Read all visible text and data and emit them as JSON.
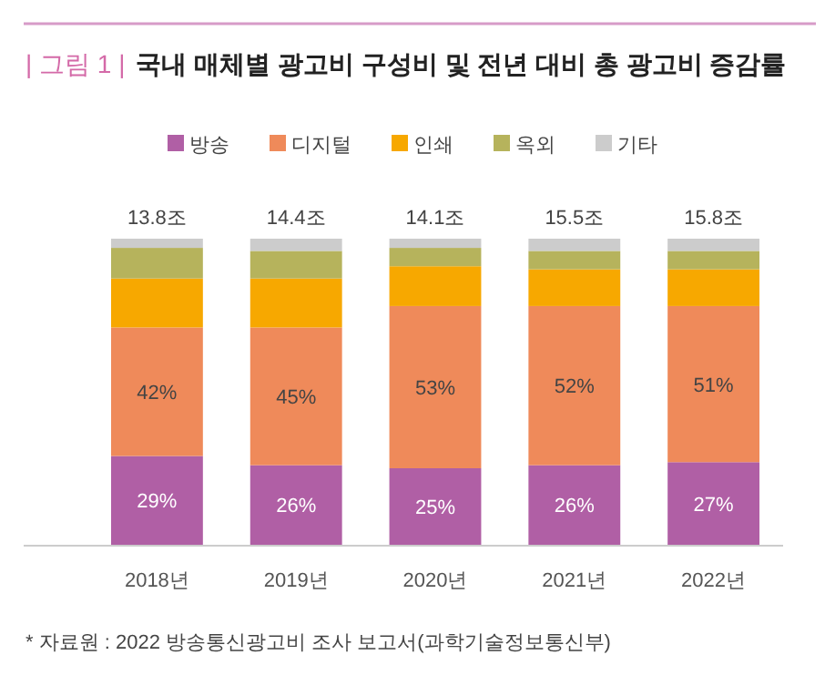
{
  "chart_data": {
    "type": "bar",
    "stacked": true,
    "title": "국내 매체별 광고비 구성비 및 전년 대비 총 광고비 증감률",
    "annotations": [
      "| 그림 1 |",
      "* 자료원 : 2022 방송통신광고비 조사 보고서(과학기술정보통신부)",
      {
        "text": "13.8조",
        "x": "2018년",
        "y": 100
      },
      {
        "text": "14.4조",
        "x": "2019년",
        "y": 100
      },
      {
        "text": "14.1조",
        "x": "2020년",
        "y": 100
      },
      {
        "text": "15.5조",
        "x": "2021년",
        "y": 100
      },
      {
        "text": "15.8조",
        "x": "2022년",
        "y": 100
      }
    ],
    "categories": [
      "2018년",
      "2019년",
      "2020년",
      "2021년",
      "2022년"
    ],
    "series": [
      {
        "name": "방송",
        "color": "#b05fa5",
        "values": [
          29,
          26,
          25,
          26,
          27
        ],
        "value_labels": [
          "29%",
          "26%",
          "25%",
          "26%",
          "27%"
        ]
      },
      {
        "name": "디지털",
        "color": "#ef8a5a",
        "values": [
          42,
          45,
          53,
          52,
          51
        ],
        "value_labels": [
          "42%",
          "45%",
          "53%",
          "52%",
          "51%"
        ]
      },
      {
        "name": "인쇄",
        "color": "#f7a800",
        "values": [
          16,
          16,
          13,
          12,
          12
        ]
      },
      {
        "name": "옥외",
        "color": "#b6b35c",
        "values": [
          10,
          9,
          6,
          6,
          6
        ]
      },
      {
        "name": "기타",
        "color": "#cccccc",
        "values": [
          3,
          4,
          3,
          4,
          4
        ]
      }
    ],
    "legend": "top"
  }
}
